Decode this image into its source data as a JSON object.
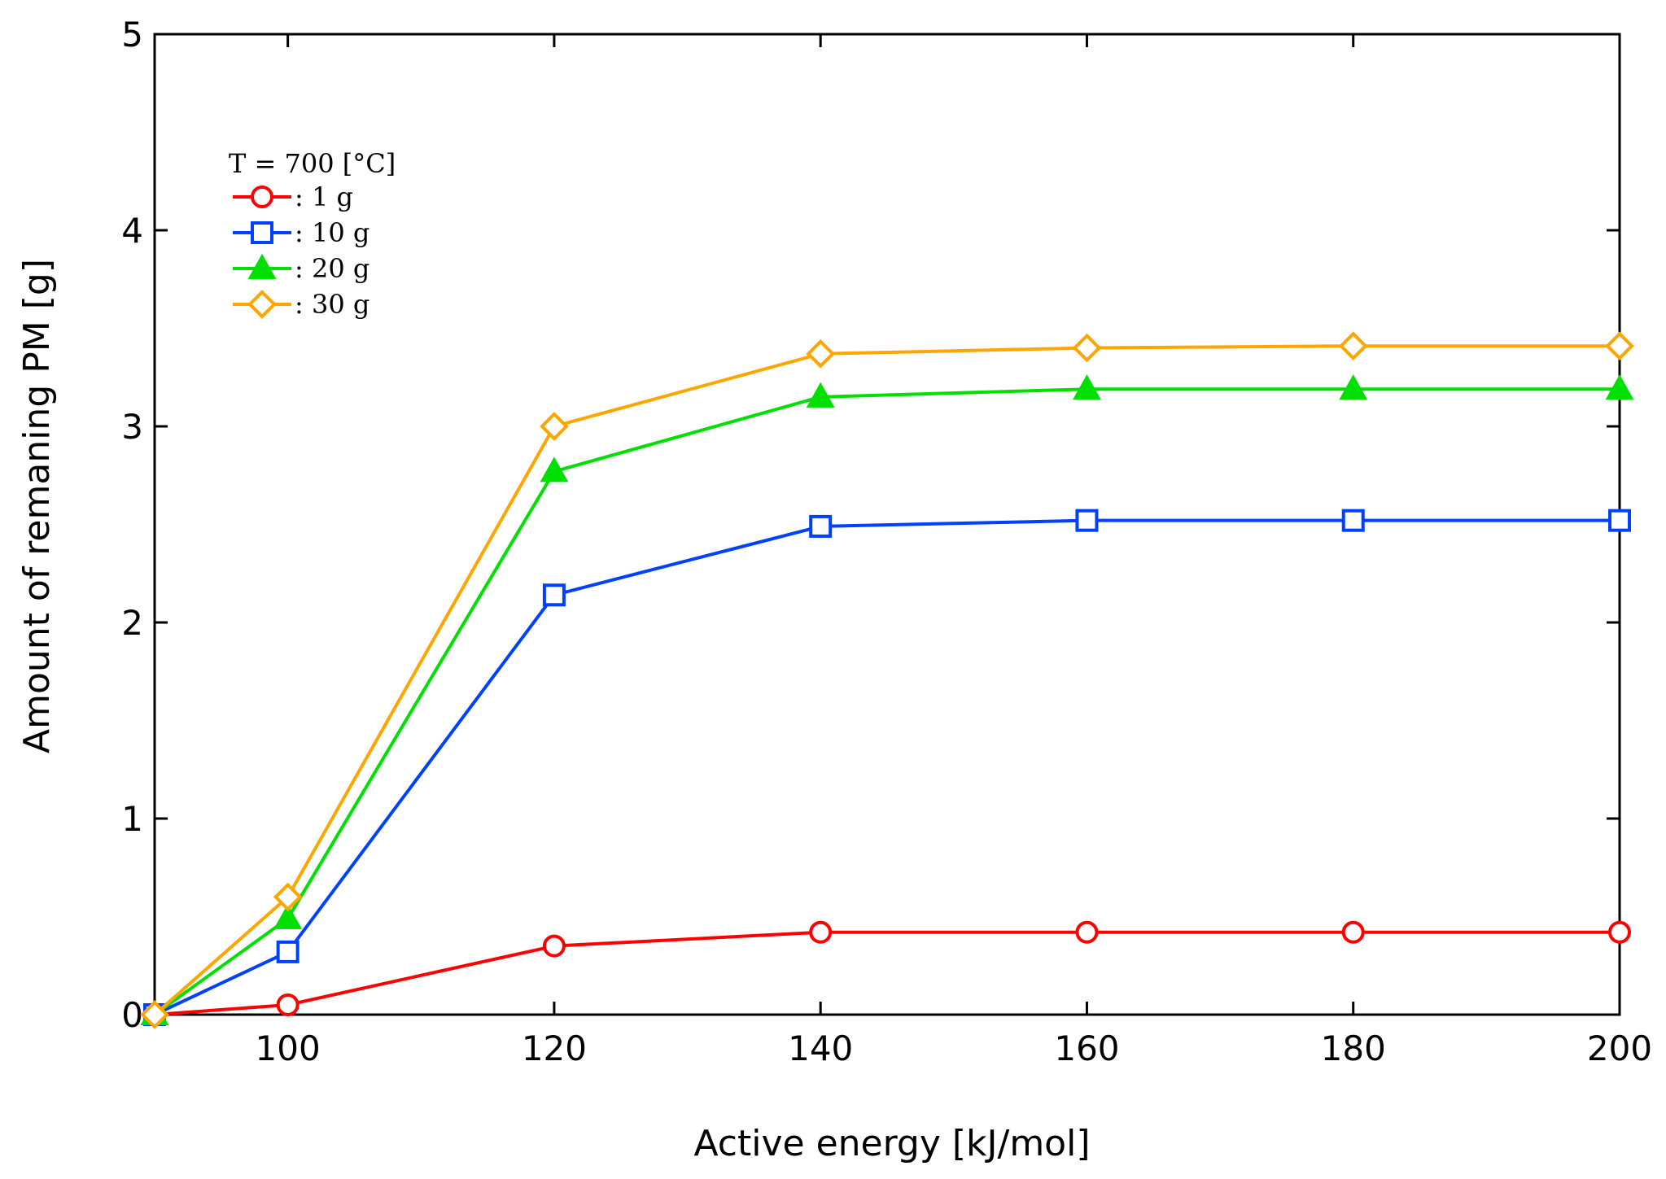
{
  "chart_data": {
    "type": "line",
    "xlabel": "Active energy [kJ/mol]",
    "ylabel": "Amount of remaning PM [g]",
    "xlim": [
      90,
      200
    ],
    "ylim": [
      0,
      5
    ],
    "xticks": [
      100,
      120,
      140,
      160,
      180,
      200
    ],
    "yticks": [
      0,
      1,
      2,
      3,
      4,
      5
    ],
    "grid": false,
    "legend": {
      "position": "top-left",
      "title": "T = 700 [°C]"
    },
    "x": [
      90,
      100,
      120,
      140,
      160,
      180,
      200
    ],
    "series": [
      {
        "name": ": 1 g",
        "color": "#ff0000",
        "marker": "circle",
        "values": [
          0.0,
          0.05,
          0.35,
          0.42,
          0.42,
          0.42,
          0.42
        ]
      },
      {
        "name": ": 10 g",
        "color": "#0040ff",
        "marker": "square",
        "values": [
          0.0,
          0.32,
          2.14,
          2.49,
          2.52,
          2.52,
          2.52
        ]
      },
      {
        "name": ": 20 g",
        "color": "#00e000",
        "marker": "triangle",
        "values": [
          0.0,
          0.49,
          2.77,
          3.15,
          3.19,
          3.19,
          3.19
        ]
      },
      {
        "name": ": 30 g",
        "color": "#ffa500",
        "marker": "diamond",
        "values": [
          0.0,
          0.6,
          3.0,
          3.37,
          3.4,
          3.41,
          3.41
        ]
      }
    ]
  }
}
